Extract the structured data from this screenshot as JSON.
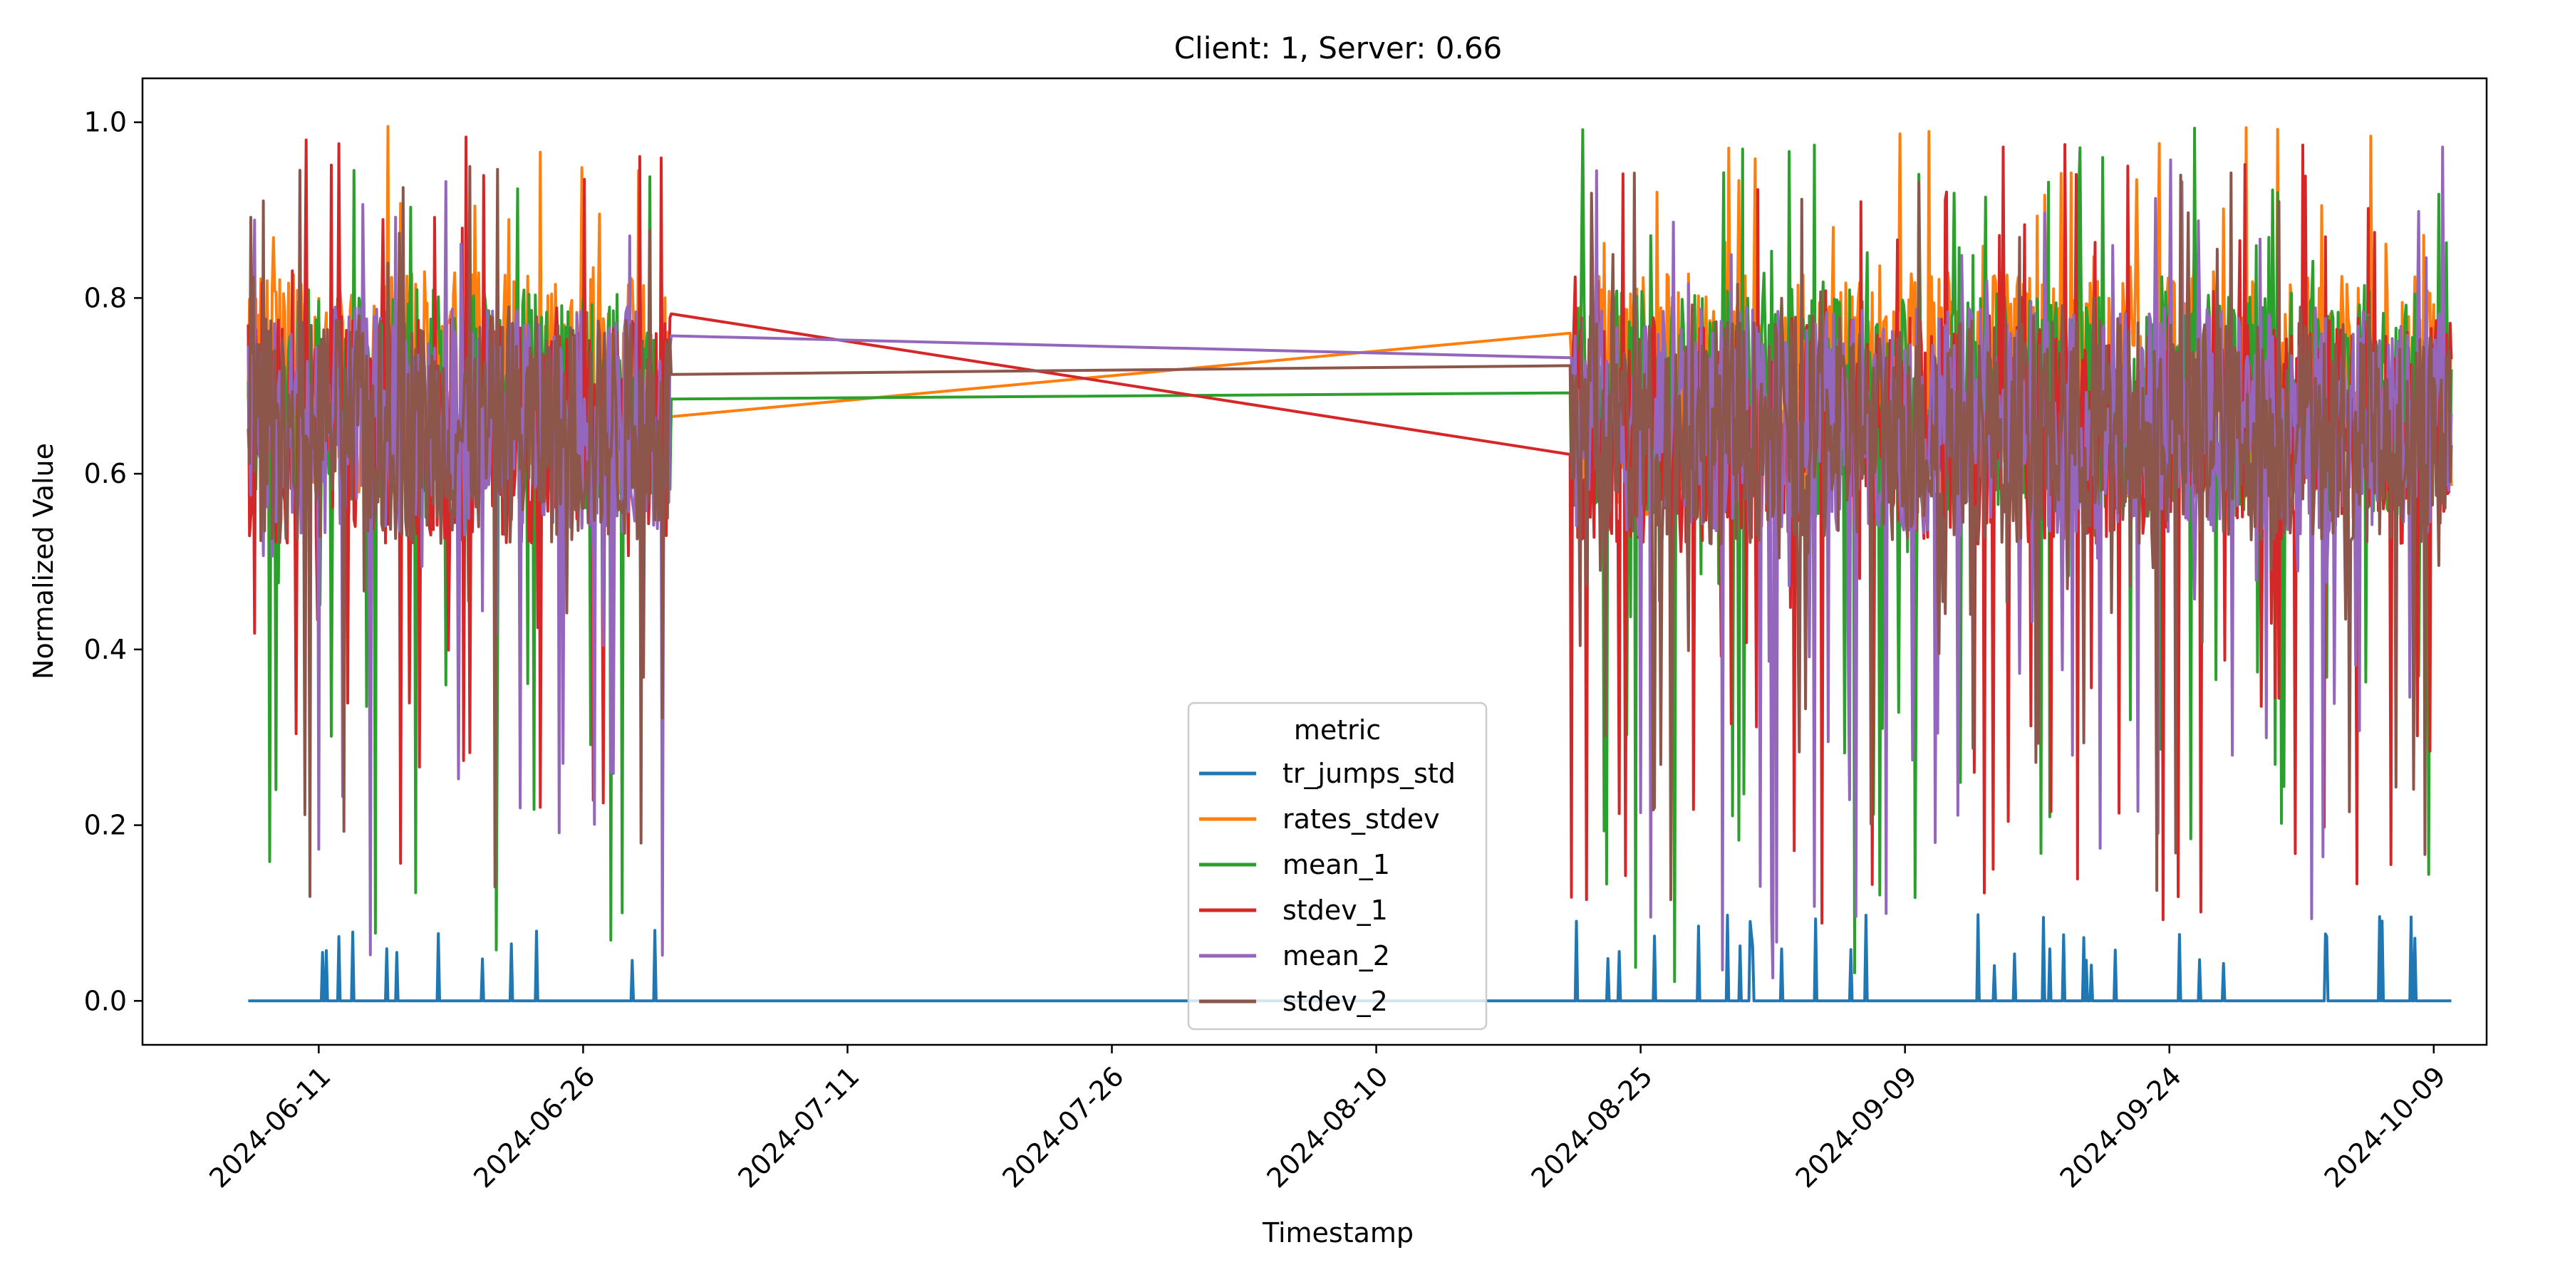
{
  "chart_data": {
    "type": "line",
    "title": "Client: 1, Server: 0.66",
    "xlabel": "Timestamp",
    "ylabel": "Normalized Value",
    "xlim": [
      "2024-06-01",
      "2024-10-12"
    ],
    "ylim": [
      -0.05,
      1.05
    ],
    "x_ticks": [
      "2024-06-11",
      "2024-06-26",
      "2024-07-11",
      "2024-07-26",
      "2024-08-10",
      "2024-08-25",
      "2024-09-09",
      "2024-09-24",
      "2024-10-09"
    ],
    "y_ticks": [
      0.0,
      0.2,
      0.4,
      0.6,
      0.8,
      1.0
    ],
    "y_tick_labels": [
      "0.0",
      "0.2",
      "0.4",
      "0.6",
      "0.8",
      "1.0"
    ],
    "grid": false,
    "legend": {
      "title": "metric",
      "placement": "lower-center"
    },
    "segments": [
      {
        "start": "2024-06-07",
        "end": "2024-07-01"
      },
      {
        "start": "2024-08-21",
        "end": "2024-10-10"
      }
    ],
    "series": [
      {
        "name": "tr_jumps_std",
        "color": "#1f77b4",
        "baseline": 0.0,
        "noise_low": 0.0,
        "noise_high": 0.1,
        "gap_start_value": 0.0,
        "gap_end_value": 0.0
      },
      {
        "name": "rates_stdev",
        "color": "#ff7f0e",
        "baseline": 0.7,
        "noise_low": 0.55,
        "noise_high": 1.0,
        "gap_start_value": 0.665,
        "gap_end_value": 0.76
      },
      {
        "name": "mean_1",
        "color": "#2ca02c",
        "baseline": 0.68,
        "noise_low": 0.02,
        "noise_high": 1.0,
        "gap_start_value": 0.685,
        "gap_end_value": 0.692
      },
      {
        "name": "stdev_1",
        "color": "#d62728",
        "baseline": 0.65,
        "noise_low": 0.08,
        "noise_high": 1.0,
        "gap_start_value": 0.782,
        "gap_end_value": 0.622
      },
      {
        "name": "mean_2",
        "color": "#9467bd",
        "baseline": 0.66,
        "noise_low": 0.02,
        "noise_high": 1.0,
        "gap_start_value": 0.757,
        "gap_end_value": 0.732
      },
      {
        "name": "stdev_2",
        "color": "#8c564b",
        "baseline": 0.65,
        "noise_low": 0.1,
        "noise_high": 0.95,
        "gap_start_value": 0.713,
        "gap_end_value": 0.723
      }
    ]
  }
}
